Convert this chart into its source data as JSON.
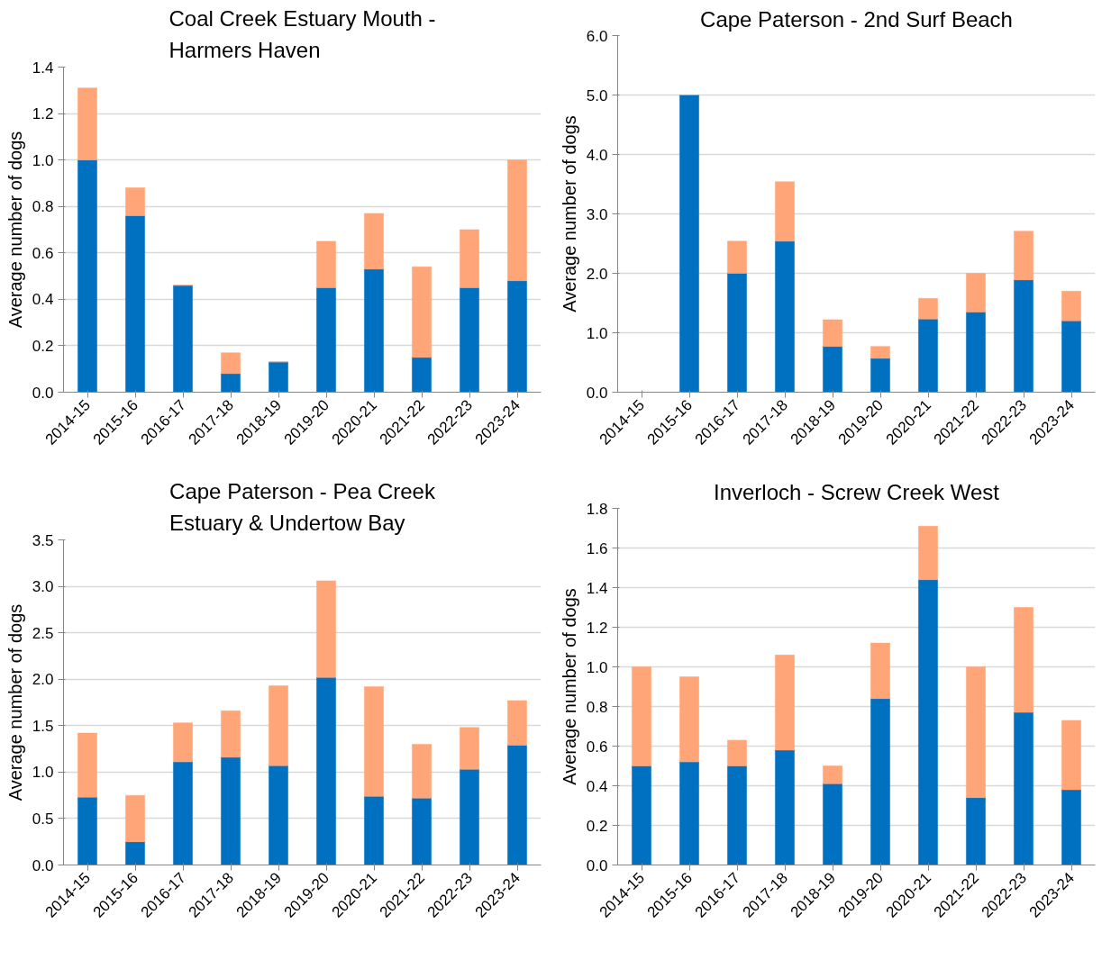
{
  "chart_data": [
    {
      "type": "bar",
      "stacked": true,
      "title": "Coal Creek Estuary Mouth - Harmers Haven",
      "ylabel": "Average number of dogs",
      "categories": [
        "2014-15",
        "2015-16",
        "2016-17",
        "2017-18",
        "2018-19",
        "2019-20",
        "2020-21",
        "2021-22",
        "2022-23",
        "2023-24"
      ],
      "series": [
        {
          "color": "#0070c0",
          "values": [
            1.0,
            0.76,
            0.46,
            0.08,
            0.13,
            0.45,
            0.53,
            0.15,
            0.45,
            0.48
          ]
        },
        {
          "color": "#ffa577",
          "values": [
            0.31,
            0.12,
            0,
            0.09,
            0,
            0.2,
            0.24,
            0.39,
            0.25,
            0.52
          ]
        }
      ],
      "ylim": [
        0,
        1.4
      ],
      "yticks": [
        {
          "value": 0,
          "label": "0.0"
        },
        {
          "value": 0.2,
          "label": "0.2"
        },
        {
          "value": 0.4,
          "label": "0.4"
        },
        {
          "value": 0.6,
          "label": "0.6"
        },
        {
          "value": 0.8,
          "label": "0.8"
        },
        {
          "value": 1.0,
          "label": "1.0"
        },
        {
          "value": 1.2,
          "label": "1.2"
        },
        {
          "value": 1.4,
          "label": "1.4"
        }
      ],
      "grid": "y"
    },
    {
      "type": "bar",
      "stacked": true,
      "title": "Cape Paterson - 2nd Surf Beach",
      "ylabel": "Average number of dogs",
      "categories": [
        "2014-15",
        "2015-16",
        "2016-17",
        "2017-18",
        "2018-19",
        "2019-20",
        "2020-21",
        "2021-22",
        "2022-23",
        "2023-24"
      ],
      "series": [
        {
          "color": "#0070c0",
          "values": [
            null,
            5.0,
            2.0,
            2.54,
            0.77,
            0.57,
            1.23,
            1.35,
            1.89,
            1.2
          ]
        },
        {
          "color": "#ffa577",
          "values": [
            null,
            0,
            0.54,
            1.0,
            0.45,
            0.2,
            0.35,
            0.65,
            0.82,
            0.5
          ]
        }
      ],
      "ylim": [
        0,
        6
      ],
      "yticks": [
        {
          "value": 0,
          "label": "0.0"
        },
        {
          "value": 1,
          "label": "1.0"
        },
        {
          "value": 2,
          "label": "2.0"
        },
        {
          "value": 3,
          "label": "3.0"
        },
        {
          "value": 4,
          "label": "4.0"
        },
        {
          "value": 5,
          "label": "5.0"
        },
        {
          "value": 6,
          "label": "6.0"
        }
      ],
      "grid": "y"
    },
    {
      "type": "bar",
      "stacked": true,
      "title": "Cape Paterson - Pea Creek Estuary & Undertow Bay",
      "ylabel": "Average number of dogs",
      "categories": [
        "2014-15",
        "2015-16",
        "2016-17",
        "2017-18",
        "2018-19",
        "2019-20",
        "2020-21",
        "2021-22",
        "2022-23",
        "2023-24"
      ],
      "series": [
        {
          "color": "#0070c0",
          "values": [
            0.73,
            0.25,
            1.11,
            1.16,
            1.07,
            2.02,
            0.74,
            0.72,
            1.03,
            1.29
          ]
        },
        {
          "color": "#ffa577",
          "values": [
            0.69,
            0.5,
            0.42,
            0.5,
            0.86,
            1.04,
            1.18,
            0.58,
            0.45,
            0.48
          ]
        }
      ],
      "ylim": [
        0,
        3.5
      ],
      "yticks": [
        {
          "value": 0,
          "label": "0.0"
        },
        {
          "value": 0.5,
          "label": "0.5"
        },
        {
          "value": 1,
          "label": "1.0"
        },
        {
          "value": 1.5,
          "label": "1.5"
        },
        {
          "value": 2,
          "label": "2.0"
        },
        {
          "value": 2.5,
          "label": "2.5"
        },
        {
          "value": 3,
          "label": "3.0"
        },
        {
          "value": 3.5,
          "label": "3.5"
        }
      ],
      "grid": "y"
    },
    {
      "type": "bar",
      "stacked": true,
      "title": "Inverloch - Screw Creek West",
      "ylabel": "Average number of dogs",
      "categories": [
        "2014-15",
        "2015-16",
        "2016-17",
        "2017-18",
        "2018-19",
        "2019-20",
        "2020-21",
        "2021-22",
        "2022-23",
        "2023-24"
      ],
      "series": [
        {
          "color": "#0070c0",
          "values": [
            0.5,
            0.52,
            0.5,
            0.58,
            0.41,
            0.84,
            1.44,
            0.34,
            0.77,
            0.38
          ]
        },
        {
          "color": "#ffa577",
          "values": [
            0.5,
            0.43,
            0.13,
            0.48,
            0.09,
            0.28,
            0.27,
            0.66,
            0.53,
            0.35
          ]
        }
      ],
      "ylim": [
        0,
        1.8
      ],
      "yticks": [
        {
          "value": 0,
          "label": "0.0"
        },
        {
          "value": 0.2,
          "label": "0.2"
        },
        {
          "value": 0.4,
          "label": "0.4"
        },
        {
          "value": 0.6,
          "label": "0.6"
        },
        {
          "value": 0.8,
          "label": "0.8"
        },
        {
          "value": 1.0,
          "label": "1.0"
        },
        {
          "value": 1.2,
          "label": "1.2"
        },
        {
          "value": 1.4,
          "label": "1.4"
        },
        {
          "value": 1.6,
          "label": "1.6"
        },
        {
          "value": 1.8,
          "label": "1.8"
        }
      ],
      "grid": "y"
    }
  ]
}
